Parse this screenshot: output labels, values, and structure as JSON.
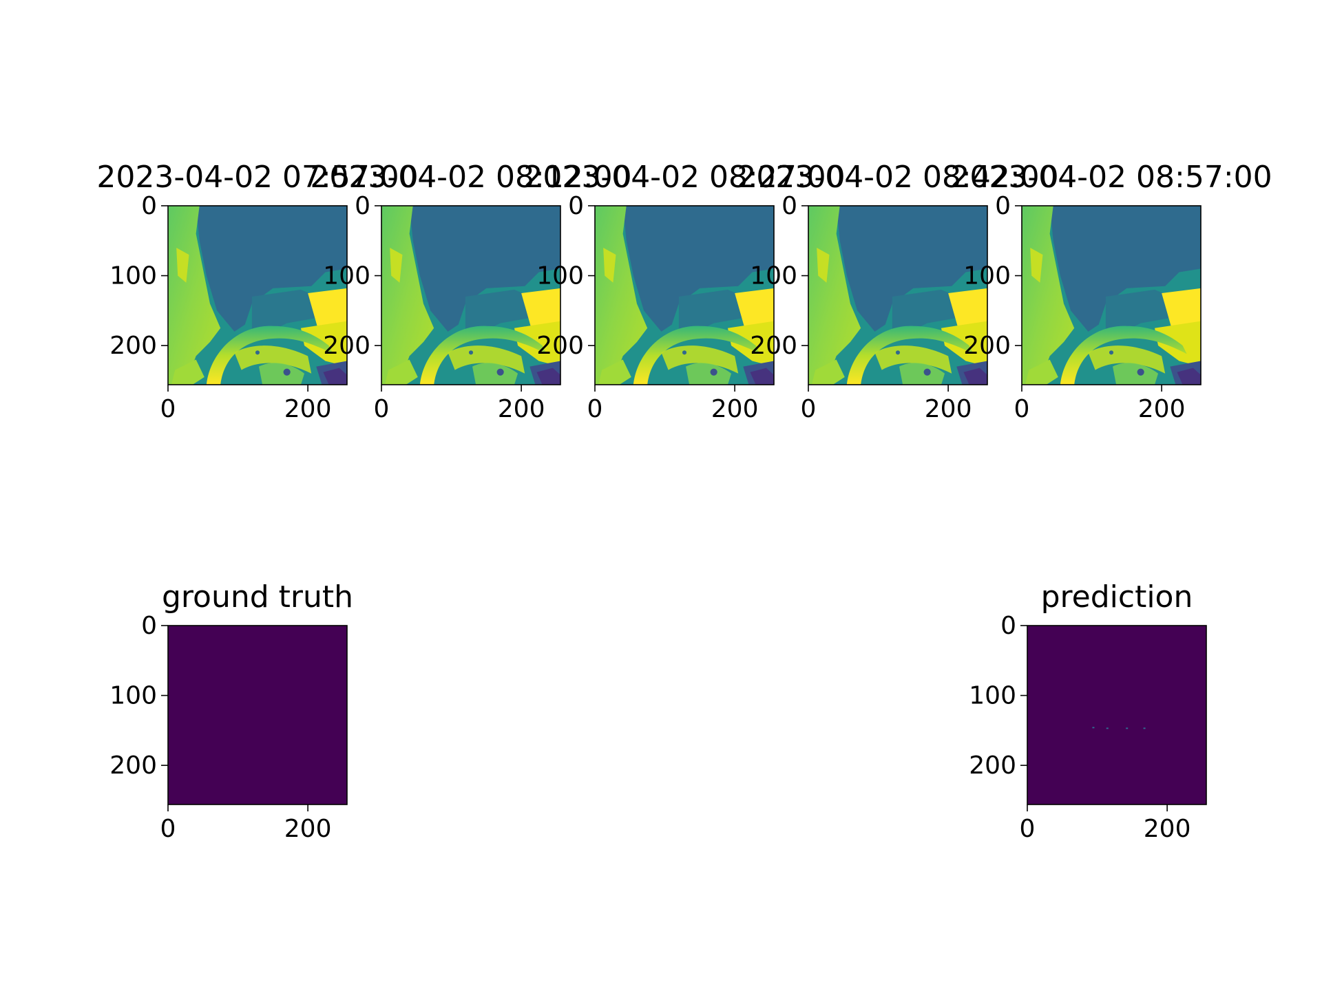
{
  "chart_data": [
    {
      "type": "heatmap",
      "role": "input",
      "title": "2023-04-02 07:57:00",
      "colormap": "viridis",
      "xlim": [
        0,
        256
      ],
      "ylim": [
        256,
        0
      ],
      "xticks": [
        "0",
        "200"
      ],
      "yticks": [
        "0",
        "100",
        "200"
      ]
    },
    {
      "type": "heatmap",
      "role": "input",
      "title": "2023-04-02 08:12:00",
      "colormap": "viridis",
      "xlim": [
        0,
        256
      ],
      "ylim": [
        256,
        0
      ],
      "xticks": [
        "0",
        "200"
      ],
      "yticks": [
        "0",
        "100",
        "200"
      ]
    },
    {
      "type": "heatmap",
      "role": "input",
      "title": "2023-04-02 08:27:00",
      "colormap": "viridis",
      "xlim": [
        0,
        256
      ],
      "ylim": [
        256,
        0
      ],
      "xticks": [
        "0",
        "200"
      ],
      "yticks": [
        "0",
        "100",
        "200"
      ]
    },
    {
      "type": "heatmap",
      "role": "input",
      "title": "2023-04-02 08:42:00",
      "colormap": "viridis",
      "xlim": [
        0,
        256
      ],
      "ylim": [
        256,
        0
      ],
      "xticks": [
        "0",
        "200"
      ],
      "yticks": [
        "0",
        "100",
        "200"
      ]
    },
    {
      "type": "heatmap",
      "role": "input",
      "title": "2023-04-02 08:57:00",
      "colormap": "viridis",
      "xlim": [
        0,
        256
      ],
      "ylim": [
        256,
        0
      ],
      "xticks": [
        "0",
        "200"
      ],
      "yticks": [
        "0",
        "100",
        "200"
      ]
    },
    {
      "type": "heatmap",
      "role": "target",
      "title": "ground truth",
      "colormap": "viridis",
      "fill_color": "#440154",
      "xlim": [
        0,
        256
      ],
      "ylim": [
        256,
        0
      ],
      "xticks": [
        "0",
        "200"
      ],
      "yticks": [
        "0",
        "100",
        "200"
      ]
    },
    {
      "type": "heatmap",
      "role": "output",
      "title": "prediction",
      "colormap": "viridis",
      "fill_color": "#440154",
      "xlim": [
        0,
        256
      ],
      "ylim": [
        256,
        0
      ],
      "xticks": [
        "0",
        "200"
      ],
      "yticks": [
        "0",
        "100",
        "200"
      ]
    }
  ],
  "colors": {
    "viridis_dark": "#440154",
    "viridis_blue": "#31688e",
    "viridis_teal": "#21918c",
    "viridis_green": "#35b779",
    "viridis_lime": "#90d743",
    "viridis_yellow": "#fde725"
  }
}
